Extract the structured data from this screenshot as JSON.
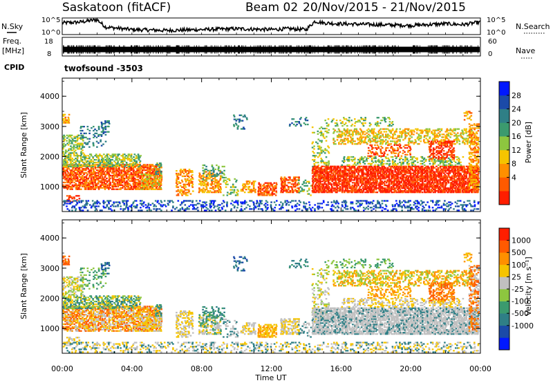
{
  "header": {
    "station": "Saskatoon (fitACF)",
    "beam": "Beam 02",
    "dates": "20/Nov/2015 - 21/Nov/2015"
  },
  "left_labels": {
    "nsky": "N.Sky",
    "freq": "Freq.",
    "freq_unit": "[MHz]",
    "cpid": "CPID"
  },
  "right_labels": {
    "nsearch": "N.Search",
    "nave": "Nave"
  },
  "cpid_value": "twofsound -3503",
  "colors": {
    "power": [
      "#0018ff",
      "#1b4aa8",
      "#2f7f86",
      "#3b9a6e",
      "#8dc63f",
      "#f5c400",
      "#ff9000",
      "#ff5a00",
      "#ff1e00"
    ],
    "velocity": [
      "#0018ff",
      "#1b4aa8",
      "#2f7f86",
      "#3b9a6e",
      "#8dc63f",
      "#c0c0c0",
      "#f5c400",
      "#ff9000",
      "#ff5a00",
      "#ff1e00"
    ]
  },
  "chart_data": [
    {
      "type": "line",
      "id": "noise",
      "yticks_left": [
        "10^5",
        "10^0"
      ],
      "yticks_right": [
        "10^5",
        "10^0"
      ],
      "x_range": [
        0,
        24
      ],
      "series": [
        {
          "values_t": [
            0,
            1,
            2,
            2.5,
            3,
            4,
            6,
            8,
            10,
            12,
            13,
            14,
            14.5,
            15,
            16,
            18,
            20,
            22,
            23,
            24
          ],
          "values": [
            0.7,
            0.75,
            0.9,
            0.45,
            0.4,
            0.3,
            0.25,
            0.3,
            0.35,
            0.3,
            0.35,
            0.3,
            0.8,
            0.7,
            0.65,
            0.6,
            0.55,
            0.65,
            0.6,
            0.75
          ]
        }
      ]
    },
    {
      "type": "bar",
      "id": "freq",
      "yticks_left": [
        "18",
        "8"
      ],
      "yticks_right": [
        "60",
        "0"
      ],
      "x_range": [
        0,
        24
      ],
      "level": 0.35
    },
    {
      "type": "heatmap",
      "id": "power",
      "ylabel": "Slant Range [km]",
      "yticks": [
        1000,
        2000,
        3000,
        4000
      ],
      "ylim": [
        180,
        4600
      ],
      "x_range": [
        0,
        24
      ],
      "colorbar": {
        "label": "Power [dB]",
        "ticks": [
          "28",
          "24",
          "20",
          "16",
          "12",
          "8",
          "4"
        ]
      }
    },
    {
      "type": "heatmap",
      "id": "velocity",
      "ylabel": "Slant Range [km]",
      "xlabel": "Time UT",
      "xticks": [
        "00:00",
        "04:00",
        "08:00",
        "12:00",
        "16:00",
        "20:00",
        "00:00"
      ],
      "yticks": [
        1000,
        2000,
        3000,
        4000
      ],
      "ylim": [
        180,
        4600
      ],
      "x_range": [
        0,
        24
      ],
      "colorbar": {
        "label": "Velocity [m s⁻¹]",
        "ticks": [
          "1000",
          "500",
          "100",
          "25",
          "-25",
          "-100",
          "-500",
          "-1000"
        ]
      }
    }
  ]
}
